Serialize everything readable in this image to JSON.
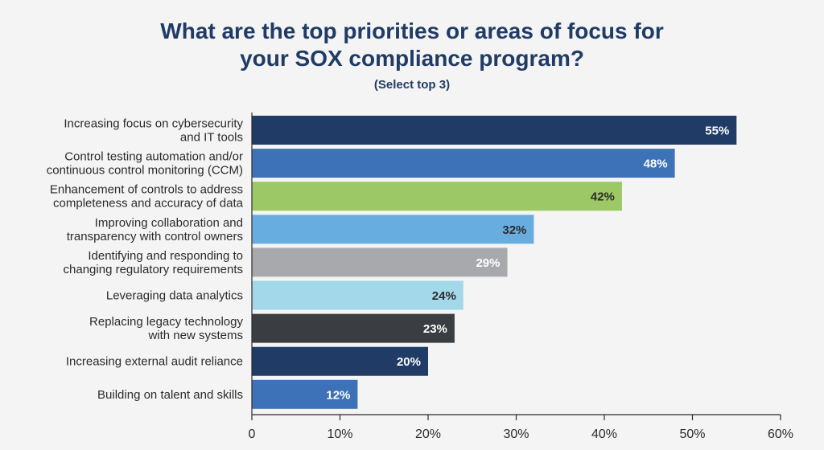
{
  "header": {
    "title_line1": "What are the top priorities or areas of focus for",
    "title_line2": "your SOX compliance program?",
    "subtitle": "(Select top 3)"
  },
  "chart_data": {
    "type": "bar",
    "orientation": "horizontal",
    "title": "What are the top priorities or areas of focus for your SOX compliance program?",
    "subtitle": "(Select top 3)",
    "categories": [
      [
        "Increasing focus on cybersecurity",
        "and IT tools"
      ],
      [
        "Control testing automation and/or",
        "continuous control monitoring (CCM)"
      ],
      [
        "Enhancement of controls to address",
        "completeness and accuracy of data"
      ],
      [
        "Improving collaboration and",
        "transparency with control owners"
      ],
      [
        "Identifying and responding to",
        "changing regulatory requirements"
      ],
      [
        "Leveraging data analytics"
      ],
      [
        "Replacing legacy technology",
        "with new systems"
      ],
      [
        "Increasing external audit reliance"
      ],
      [
        "Building on talent and skills"
      ]
    ],
    "values": [
      55,
      48,
      42,
      32,
      29,
      24,
      23,
      20,
      12
    ],
    "value_labels": [
      "55%",
      "48%",
      "42%",
      "32%",
      "29%",
      "24%",
      "23%",
      "20%",
      "12%"
    ],
    "bar_colors": [
      "#1f3b66",
      "#3d71b8",
      "#9cc865",
      "#68ade0",
      "#a7a9ac",
      "#a3d7ea",
      "#3a3d41",
      "#1f3b66",
      "#3d71b8"
    ],
    "label_colors": [
      "#ffffff",
      "#ffffff",
      "#2b2b2b",
      "#2b2b2b",
      "#ffffff",
      "#2b2b2b",
      "#ffffff",
      "#ffffff",
      "#ffffff"
    ],
    "xlim": [
      0,
      60
    ],
    "xticks": [
      0,
      10,
      20,
      30,
      40,
      50,
      60
    ],
    "xtick_labels": [
      "0",
      "10%",
      "20%",
      "30%",
      "40%",
      "50%",
      "60%"
    ],
    "grid": false,
    "legend": "none"
  }
}
